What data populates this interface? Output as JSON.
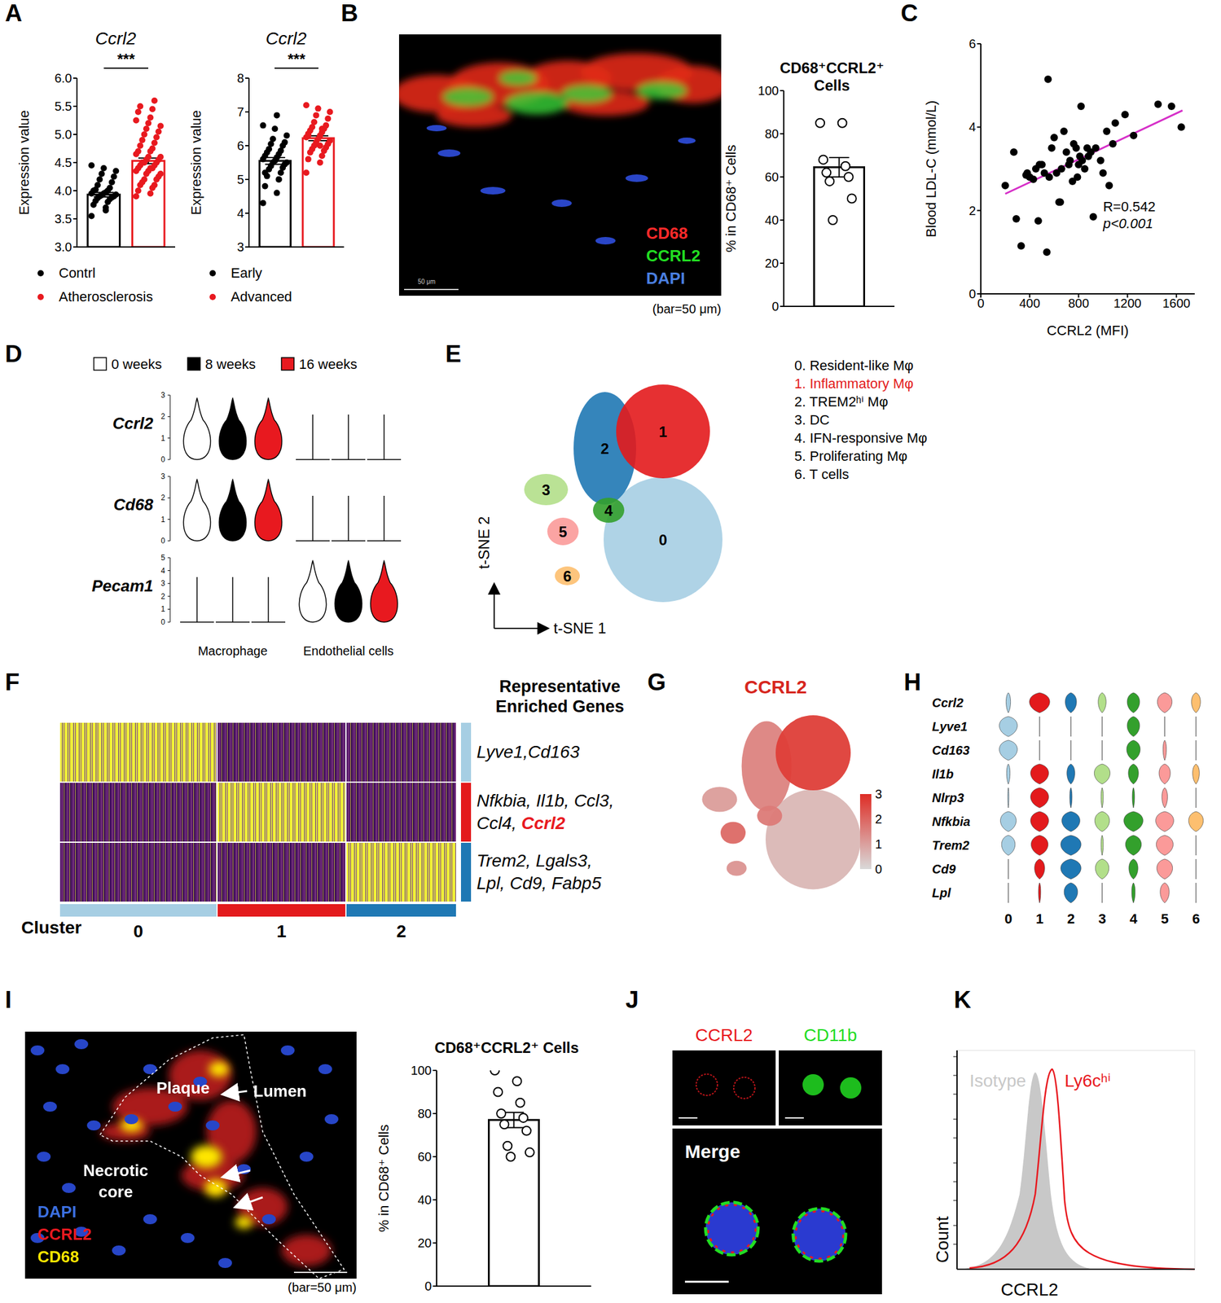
{
  "chart_data": [
    {
      "type": "bar",
      "title": "Ccrl2",
      "y_label": "Expression value",
      "categories": [
        "Contrl",
        "Atherosclerosis"
      ],
      "colors": [
        "#000000",
        "#e8191f"
      ],
      "values": [
        3.93,
        4.53
      ],
      "errors": [
        0.04,
        0.05
      ],
      "points": [
        [
          3.55,
          3.7,
          3.75,
          3.8,
          3.82,
          3.85,
          3.87,
          3.88,
          3.9,
          3.9,
          3.92,
          3.93,
          3.95,
          3.95,
          3.97,
          4.0,
          4.0,
          4.02,
          4.05,
          4.1,
          4.15,
          4.2,
          4.25,
          4.3,
          4.35,
          4.4,
          4.45,
          3.65
        ],
        [
          3.9,
          3.95,
          4.0,
          4.05,
          4.1,
          4.1,
          4.15,
          4.2,
          4.2,
          4.25,
          4.3,
          4.3,
          4.35,
          4.35,
          4.4,
          4.4,
          4.4,
          4.45,
          4.45,
          4.5,
          4.5,
          4.5,
          4.55,
          4.55,
          4.6,
          4.6,
          4.65,
          4.7,
          4.7,
          4.75,
          4.8,
          4.85,
          4.9,
          4.95,
          5.0,
          5.05,
          5.1,
          5.15,
          5.2,
          5.25,
          5.3,
          5.4,
          5.45,
          5.5,
          5.6
        ]
      ],
      "ylim": [
        3,
        6
      ],
      "yticks": [
        {
          "value": 3,
          "label": "3.0"
        },
        {
          "value": 3.5,
          "label": "3.5"
        },
        {
          "value": 4,
          "label": "4.0"
        },
        {
          "value": 4.5,
          "label": "4.5"
        },
        {
          "value": 5,
          "label": "5.0"
        },
        {
          "value": 5.5,
          "label": "5.5"
        },
        {
          "value": 6,
          "label": "6.0"
        }
      ],
      "significance": "***",
      "marker": "filled",
      "tick_labels": "y",
      "legend": "bottom"
    },
    {
      "type": "bar",
      "title": "Ccrl2",
      "y_label": "Expression value",
      "categories": [
        "Early",
        "Advanced"
      ],
      "colors": [
        "#000000",
        "#e8191f"
      ],
      "values": [
        5.55,
        6.22
      ],
      "errors": [
        0.1,
        0.07
      ],
      "points": [
        [
          4.3,
          4.6,
          4.8,
          5.0,
          5.1,
          5.2,
          5.3,
          5.35,
          5.4,
          5.45,
          5.5,
          5.5,
          5.55,
          5.6,
          5.65,
          5.7,
          5.75,
          5.8,
          5.85,
          5.9,
          6.0,
          6.05,
          6.1,
          6.2,
          6.3,
          6.5,
          6.6,
          6.9,
          5.2,
          5.0
        ],
        [
          5.2,
          5.5,
          5.6,
          5.7,
          5.8,
          5.85,
          5.9,
          5.95,
          6.0,
          6.05,
          6.1,
          6.15,
          6.2,
          6.25,
          6.3,
          6.35,
          6.4,
          6.45,
          6.5,
          6.55,
          6.6,
          6.7,
          6.8,
          6.9,
          7.0,
          7.1,
          7.2,
          6.0,
          6.3,
          6.5
        ]
      ],
      "ylim": [
        3,
        8
      ],
      "yticks": [
        3,
        4,
        5,
        6,
        7,
        8
      ],
      "significance": "***",
      "marker": "filled",
      "tick_labels": "y",
      "legend": "bottom"
    },
    {
      "type": "bar",
      "title": "CD68⁺CCRL2⁺ Cells",
      "y_label": "% in CD68⁺ Cells",
      "categories": [
        null
      ],
      "color": "#000000",
      "values": [
        64.5
      ],
      "errors": [
        4.5
      ],
      "points": [
        [
          85,
          85,
          68,
          65,
          62,
          60,
          58,
          50,
          40
        ]
      ],
      "ylim": [
        0,
        100
      ],
      "yticks": [
        0,
        20,
        40,
        60,
        80,
        100
      ],
      "marker": "open",
      "tick_labels": "y"
    },
    {
      "type": "scatter",
      "x_label": "CCRL2 (MFI)",
      "y_label": "Blood LDL-C (mmol/L)",
      "x": [
        200,
        270,
        290,
        330,
        370,
        380,
        400,
        430,
        450,
        470,
        480,
        500,
        520,
        540,
        550,
        560,
        580,
        600,
        620,
        640,
        650,
        660,
        680,
        700,
        720,
        730,
        750,
        760,
        780,
        790,
        800,
        810,
        820,
        830,
        850,
        870,
        880,
        900,
        920,
        940,
        980,
        1000,
        1030,
        1050,
        1080,
        1100,
        1180,
        1250,
        1450,
        1560,
        1640
      ],
      "y": [
        2.6,
        3.4,
        1.8,
        1.15,
        2.85,
        2.9,
        2.8,
        2.75,
        3.0,
        1.75,
        3.1,
        3.1,
        2.9,
        1.0,
        5.15,
        2.8,
        3.5,
        3.75,
        2.9,
        2.2,
        2.2,
        3.0,
        3.9,
        3.4,
        3.1,
        3.2,
        2.7,
        3.6,
        3.5,
        2.8,
        3.1,
        3.3,
        4.5,
        3.2,
        3.0,
        3.5,
        3.3,
        3.4,
        1.85,
        3.5,
        3.2,
        2.9,
        3.9,
        2.6,
        3.6,
        4.1,
        4.3,
        3.8,
        4.55,
        4.5,
        4.0
      ],
      "color": "#000000",
      "xlim": [
        0,
        1750
      ],
      "xticks": [
        0,
        400,
        800,
        1200,
        1600
      ],
      "ylim": [
        0,
        6
      ],
      "yticks": [
        0,
        2,
        4,
        6
      ],
      "fit": {
        "x": [
          200,
          1650
        ],
        "y": [
          2.4,
          4.4
        ],
        "color": "#d62fc8"
      },
      "annotations": [
        "R=0.542",
        "p<0.001"
      ]
    },
    {
      "type": "bar",
      "title": "CD68⁺CCRL2⁺ Cells",
      "y_label": "% in CD68⁺ Cells",
      "categories": [
        null
      ],
      "color": "#000000",
      "values": [
        77
      ],
      "errors": [
        3.5
      ],
      "points": [
        [
          100,
          95,
          90,
          85,
          80,
          78,
          75,
          72,
          65,
          62,
          60
        ]
      ],
      "ylim": [
        0,
        100
      ],
      "yticks": [
        0,
        20,
        40,
        60,
        80,
        100
      ],
      "marker": "open",
      "tick_labels": "y"
    }
  ],
  "figure": {
    "letters": [
      "A",
      "B",
      "C",
      "D",
      "E",
      "F",
      "G",
      "H",
      "I",
      "J",
      "K"
    ],
    "B_image": {
      "channels": [
        {
          "text": "CD68",
          "color": "#ff2a2a"
        },
        {
          "text": "CCRL2",
          "color": "#22dd22"
        },
        {
          "text": "DAPI",
          "color": "#4a7fe0"
        }
      ],
      "scale_text": "50 μm",
      "caption": "(bar=50 μm)"
    },
    "D": {
      "legend": [
        {
          "name": "0 weeks",
          "color": "#ffffff"
        },
        {
          "name": "8 weeks",
          "color": "#000000"
        },
        {
          "name": "16 weeks",
          "color": "#e8191f"
        }
      ],
      "groups": [
        "Macrophage",
        "Endothelial cells"
      ],
      "genes": [
        {
          "name": "Ccrl2",
          "ticks": [
            0,
            1,
            2,
            3
          ],
          "group": "Macrophage"
        },
        {
          "name": "Cd68",
          "ticks": [
            0,
            1,
            2,
            3
          ],
          "group": "Macrophage"
        },
        {
          "name": "Pecam1",
          "ticks": [
            0,
            1,
            2,
            3,
            4,
            5
          ],
          "group": "Endothelial cells"
        }
      ]
    },
    "E": {
      "x_label": "t-SNE 1",
      "y_label": "t-SNE 2",
      "highlight": 1,
      "clusters": [
        {
          "number": "0",
          "label": "0. Resident-like Mφ",
          "color": "#a6cee3"
        },
        {
          "number": "1",
          "label": "1. Inflammatory Mφ",
          "color": "#e31a1c"
        },
        {
          "number": "2",
          "label": "2. TREM2ʰⁱ Mφ",
          "color": "#1f78b4"
        },
        {
          "number": "3",
          "label": "3. DC",
          "color": "#b2df8a"
        },
        {
          "number": "4",
          "label": "4. IFN-responsive Mφ",
          "color": "#33a02c"
        },
        {
          "number": "5",
          "label": "5. Proliferating Mφ",
          "color": "#fb9a99"
        },
        {
          "number": "6",
          "label": "6. T cells",
          "color": "#fdbf6f"
        }
      ]
    },
    "F": {
      "title": "Representative Enriched Genes",
      "cluster_label": "Cluster",
      "columns": [
        "0",
        "1",
        "2"
      ],
      "groups": [
        {
          "lines": [
            "Lyve1,Cd163"
          ]
        },
        {
          "lines": [
            "Nfkbia, Il1b, Ccl3,",
            "Ccl4, Ccrl2"
          ],
          "highlight": "Ccrl2"
        },
        {
          "lines": [
            "Trem2, Lgals3,",
            "Lpl, Cd9, Fabp5"
          ]
        }
      ]
    },
    "G": {
      "title": "CCRL2",
      "colorbar": {
        "range": [
          0,
          3
        ],
        "ticks": [
          0,
          1,
          2,
          3
        ]
      }
    },
    "H": {
      "x_labels": [
        "0",
        "1",
        "2",
        "3",
        "4",
        "5",
        "6"
      ],
      "genes": [
        {
          "name": "Ccrl2",
          "levels": [
            0.2,
            0.9,
            0.5,
            0.35,
            0.55,
            0.65,
            0.4
          ]
        },
        {
          "name": "Lyve1",
          "levels": [
            0.8,
            0,
            0,
            0,
            0.55,
            0,
            0
          ]
        },
        {
          "name": "Cd163",
          "levels": [
            0.8,
            0,
            0,
            0,
            0.6,
            0.15,
            0
          ]
        },
        {
          "name": "Il1b",
          "levels": [
            0.15,
            0.8,
            0.35,
            0.7,
            0.45,
            0.5,
            0.3
          ]
        },
        {
          "name": "Nlrp3",
          "levels": [
            0.05,
            0.8,
            0.1,
            0.1,
            0.1,
            0.25,
            0
          ]
        },
        {
          "name": "Nfkbia",
          "levels": [
            0.7,
            0.8,
            0.8,
            0.65,
            0.85,
            0.8,
            0.65
          ]
        },
        {
          "name": "Trem2",
          "levels": [
            0.6,
            0.75,
            0.9,
            0.1,
            0.7,
            0.75,
            0
          ]
        },
        {
          "name": "Cd9",
          "levels": [
            0,
            0.45,
            0.9,
            0.6,
            0.4,
            0.7,
            0
          ]
        },
        {
          "name": "Lpl",
          "levels": [
            0,
            0.1,
            0.6,
            0,
            0.15,
            0.4,
            0
          ]
        }
      ]
    },
    "I_image": {
      "labels": [
        "Plaque",
        "Lumen",
        "Necrotic core"
      ],
      "channels": [
        {
          "text": "DAPI",
          "color": "#3b6fe0"
        },
        {
          "text": "CCRL2",
          "color": "#e8191f"
        },
        {
          "text": "CD68",
          "color": "#ffe600"
        }
      ],
      "caption": "(bar=50 μm)"
    },
    "J": {
      "tiles": [
        {
          "text": "CCRL2",
          "color": "#e8191f"
        },
        {
          "text": "CD11b",
          "color": "#22dd22"
        }
      ],
      "merge": "Merge"
    },
    "K": {
      "series": [
        {
          "name": "Isotype",
          "color": "#c8c8c8"
        },
        {
          "name": "Ly6cʰⁱ",
          "color": "#e8191f"
        }
      ],
      "x_label": "CCRL2",
      "y_label": "Count"
    }
  }
}
